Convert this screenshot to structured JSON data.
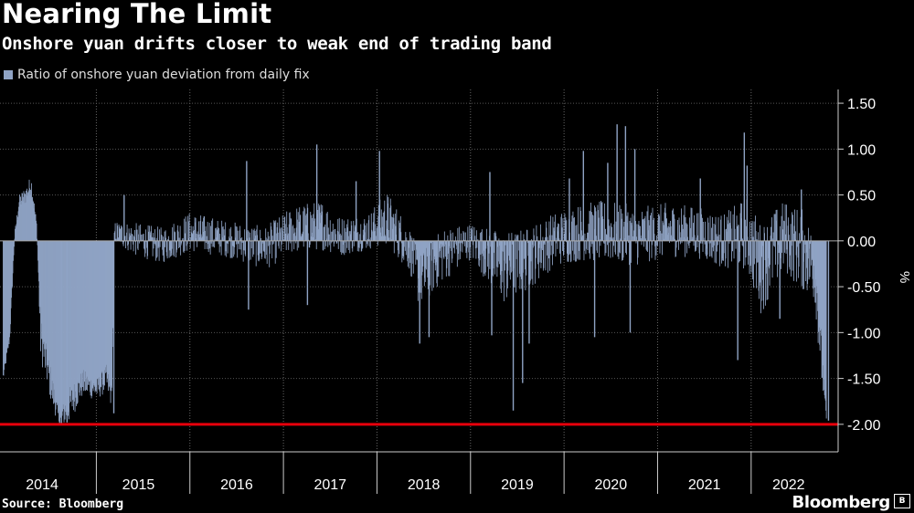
{
  "chart_data": {
    "type": "bar",
    "title": "Nearing The Limit",
    "subtitle": "Onshore yuan drifts closer to weak end of trading band",
    "legend": [
      "Ratio of onshore yuan deviation from daily fix"
    ],
    "ylabel": "%",
    "ylim": [
      -2.3,
      1.65
    ],
    "yticks": [
      1.5,
      1.0,
      0.5,
      0.0,
      -0.5,
      -1.0,
      -1.5,
      -2.0
    ],
    "ytick_labels": [
      "1.50",
      "1.00",
      "0.50",
      "0.00",
      "-0.50",
      "-1.00",
      "-1.50",
      "-2.00"
    ],
    "x_tick_labels": [
      "2014",
      "2015",
      "2016",
      "2017",
      "2018",
      "2019",
      "2020",
      "2021",
      "2022"
    ],
    "reference_line": {
      "value": -2.0,
      "color": "#e8000b"
    },
    "bar_color": "#8fa3c4",
    "series": [
      {
        "name": "Ratio of onshore yuan deviation from daily fix",
        "keyframes": [
          [
            2014.0,
            -1.48,
            0.05
          ],
          [
            2014.07,
            -1.05,
            0.06
          ],
          [
            2014.12,
            0.02,
            0.06
          ],
          [
            2014.17,
            0.42,
            0.08
          ],
          [
            2014.24,
            0.5,
            0.1
          ],
          [
            2014.3,
            0.62,
            0.1
          ],
          [
            2014.36,
            0.14,
            0.06
          ],
          [
            2014.4,
            -1.05,
            0.25
          ],
          [
            2014.52,
            -1.62,
            0.18
          ],
          [
            2014.6,
            -1.95,
            0.08
          ],
          [
            2014.7,
            -1.8,
            0.2
          ],
          [
            2014.85,
            -1.55,
            0.15
          ],
          [
            2015.0,
            -1.62,
            0.12
          ],
          [
            2015.1,
            -1.5,
            0.15
          ],
          [
            2015.16,
            -1.7,
            0.12
          ],
          [
            2015.19,
            0.1,
            0.12
          ],
          [
            2015.4,
            0.02,
            0.18
          ],
          [
            2015.7,
            -0.05,
            0.2
          ],
          [
            2016.0,
            0.1,
            0.22
          ],
          [
            2016.4,
            0.02,
            0.2
          ],
          [
            2016.8,
            -0.08,
            0.24
          ],
          [
            2017.1,
            0.12,
            0.26
          ],
          [
            2017.4,
            0.18,
            0.28
          ],
          [
            2017.6,
            0.05,
            0.22
          ],
          [
            2017.9,
            0.1,
            0.2
          ],
          [
            2018.1,
            0.25,
            0.3
          ],
          [
            2018.35,
            -0.1,
            0.25
          ],
          [
            2018.45,
            -0.45,
            0.3
          ],
          [
            2018.7,
            -0.15,
            0.3
          ],
          [
            2019.0,
            0.0,
            0.2
          ],
          [
            2019.35,
            -0.3,
            0.4
          ],
          [
            2019.6,
            -0.2,
            0.35
          ],
          [
            2019.9,
            0.02,
            0.3
          ],
          [
            2020.2,
            0.1,
            0.32
          ],
          [
            2020.5,
            0.1,
            0.35
          ],
          [
            2020.8,
            0.05,
            0.32
          ],
          [
            2021.1,
            0.12,
            0.3
          ],
          [
            2021.4,
            0.1,
            0.28
          ],
          [
            2021.7,
            0.0,
            0.3
          ],
          [
            2021.95,
            0.08,
            0.4
          ],
          [
            2022.1,
            -0.3,
            0.5
          ],
          [
            2022.35,
            0.05,
            0.4
          ],
          [
            2022.55,
            -0.1,
            0.45
          ],
          [
            2022.68,
            -0.3,
            0.4
          ],
          [
            2022.74,
            -1.2,
            0.3
          ],
          [
            2022.8,
            -1.95,
            0.05
          ]
        ],
        "spikes": [
          [
            2014.62,
            -1.99
          ],
          [
            2014.68,
            -1.98
          ],
          [
            2015.18,
            -1.88
          ],
          [
            2015.29,
            0.5
          ],
          [
            2016.6,
            0.87
          ],
          [
            2016.62,
            -0.75
          ],
          [
            2017.35,
            1.05
          ],
          [
            2017.25,
            -0.7
          ],
          [
            2017.77,
            0.65
          ],
          [
            2018.02,
            0.98
          ],
          [
            2018.45,
            -1.12
          ],
          [
            2018.55,
            -1.05
          ],
          [
            2019.2,
            0.75
          ],
          [
            2019.22,
            -1.03
          ],
          [
            2019.45,
            -1.85
          ],
          [
            2019.55,
            -1.55
          ],
          [
            2019.62,
            -1.12
          ],
          [
            2020.05,
            0.68
          ],
          [
            2020.2,
            0.98
          ],
          [
            2020.32,
            -1.05
          ],
          [
            2020.46,
            0.85
          ],
          [
            2020.56,
            1.27
          ],
          [
            2020.65,
            1.25
          ],
          [
            2020.7,
            -1.0
          ],
          [
            2020.75,
            1.0
          ],
          [
            2021.45,
            0.68
          ],
          [
            2021.85,
            -1.3
          ],
          [
            2021.92,
            1.18
          ],
          [
            2021.95,
            0.82
          ],
          [
            2022.3,
            -0.85
          ],
          [
            2022.53,
            0.56
          ],
          [
            2022.68,
            -0.67
          ],
          [
            2022.82,
            -1.96
          ]
        ]
      }
    ]
  },
  "footer": {
    "source": "Source: Bloomberg",
    "brand": "Bloomberg",
    "brand_icon": "B"
  }
}
